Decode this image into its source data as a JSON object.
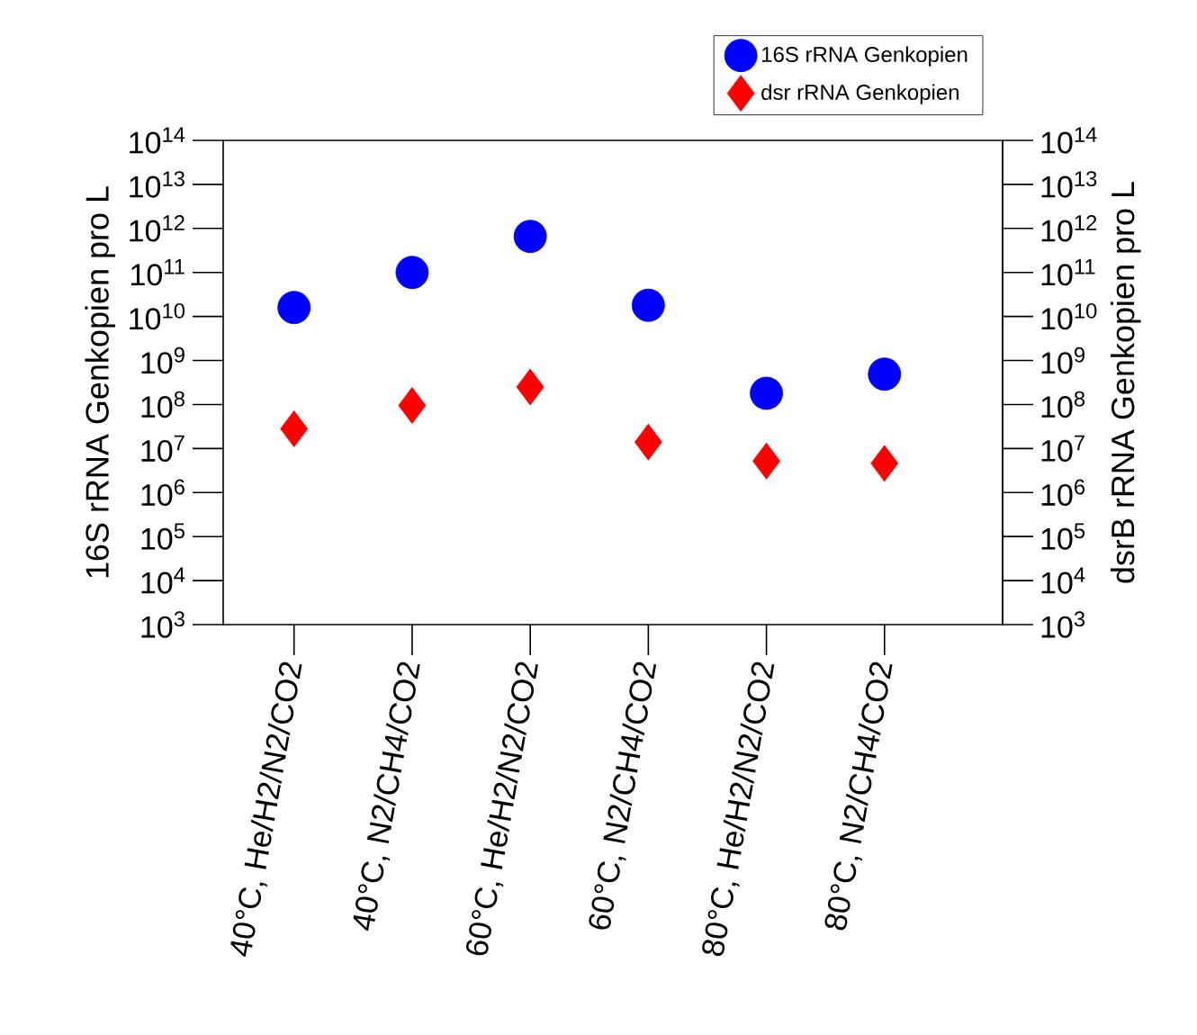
{
  "chart_data": {
    "type": "scatter",
    "categories": [
      "40°C, He/H2/N2/CO2",
      "40°C, N2/CH4/CO2",
      "60°C, He/H2/N2/CO2",
      "60°C, N2/CH4/CO2",
      "80°C, He/H2/N2/CO2",
      "80°C, N2/CH4/CO2"
    ],
    "series": [
      {
        "name": "16S rRNA Genkopien",
        "color": "#0000ff",
        "marker": "circle",
        "values": [
          16000000000.0,
          100000000000.0,
          660000000000.0,
          18000000000.0,
          180000000.0,
          490000000.0
        ]
      },
      {
        "name": "dsr rRNA Genkopien",
        "color": "#ff0000",
        "marker": "diamond",
        "values": [
          28000000.0,
          95000000.0,
          250000000.0,
          14000000.0,
          5200000.0,
          4600000.0
        ]
      }
    ],
    "ylabel": "16S rRNA Genkopien pro L",
    "y2label": "dsrB rRNA Genkopien pro L",
    "log": "y",
    "ylim": [
      1000.0,
      100000000000000.0
    ],
    "yticks": [
      {
        "value": 1000.0,
        "label": "10$^{3}$"
      },
      {
        "value": 10000.0,
        "label": "10$^{4}$"
      },
      {
        "value": 100000.0,
        "label": "10$^{5}$"
      },
      {
        "value": 1000000.0,
        "label": "10$^{6}$"
      },
      {
        "value": 10000000.0,
        "label": "10$^{7}$"
      },
      {
        "value": 100000000.0,
        "label": "10$^{8}$"
      },
      {
        "value": 1000000000.0,
        "label": "10$^{9}$"
      },
      {
        "value": 10000000000.0,
        "label": "10$^{10}$"
      },
      {
        "value": 100000000000.0,
        "label": "10$^{11}$"
      },
      {
        "value": 1000000000000.0,
        "label": "10$^{12}$"
      },
      {
        "value": 10000000000000.0,
        "label": "10$^{13}$"
      },
      {
        "value": 100000000000000.0,
        "label": "10$^{14}$"
      }
    ],
    "legend": "top right"
  }
}
